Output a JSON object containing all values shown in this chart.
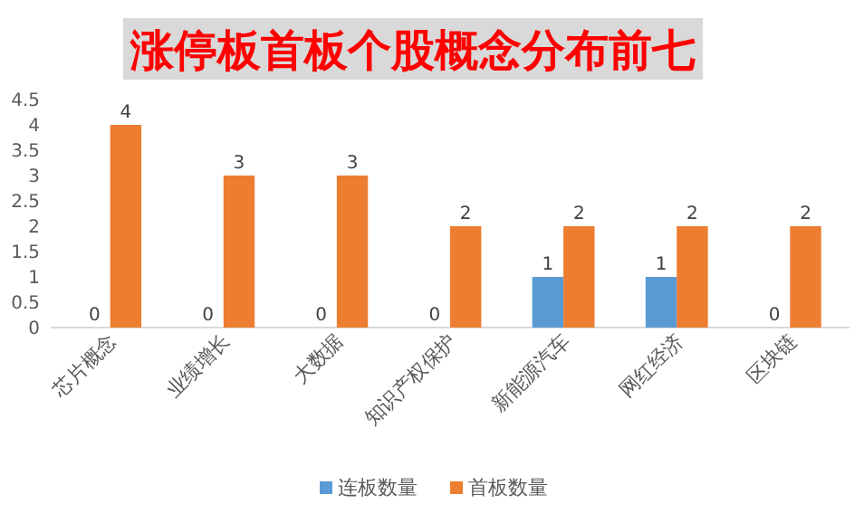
{
  "chart_data": {
    "type": "bar",
    "title": "涨停板首板个股概念分布前七",
    "categories": [
      "芯片概念",
      "业绩增长",
      "大数据",
      "知识产权保护",
      "新能源汽车",
      "网红经济",
      "区块链"
    ],
    "series": [
      {
        "name": "连板数量",
        "color": "#5b9bd5",
        "values": [
          0,
          0,
          0,
          0,
          1,
          1,
          0
        ]
      },
      {
        "name": "首板数量",
        "color": "#ed7d31",
        "values": [
          4,
          3,
          3,
          2,
          2,
          2,
          2
        ]
      }
    ],
    "ylim": [
      0,
      4.5
    ],
    "yticks": [
      0,
      0.5,
      1,
      1.5,
      2,
      2.5,
      3,
      3.5,
      4,
      4.5
    ],
    "grid": false,
    "legend": "bottom",
    "data_labels": true
  }
}
